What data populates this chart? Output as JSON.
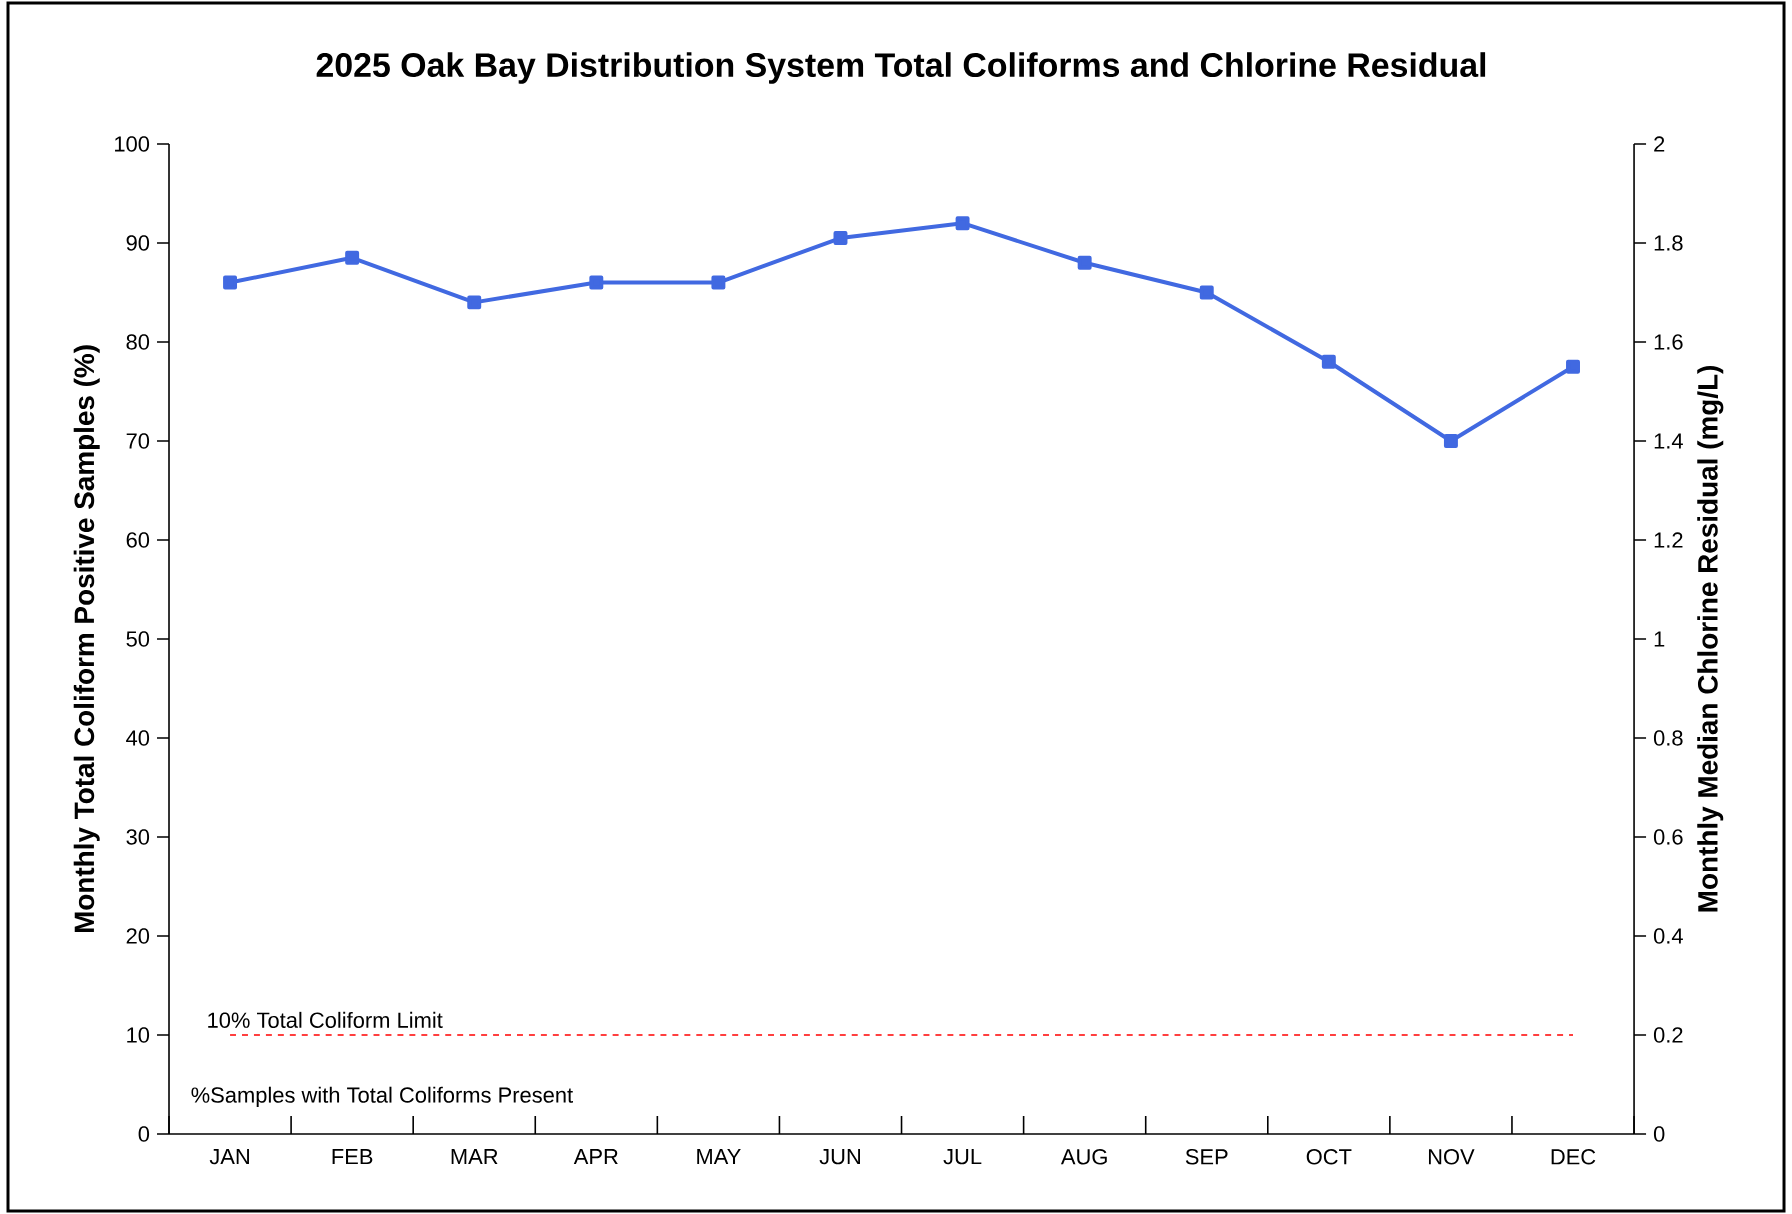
{
  "chart_data": {
    "type": "line",
    "title": "2025 Oak Bay Distribution System Total Coliforms and Chlorine Residual",
    "ylabel": "Monthly  Total Coliform Positive Samples (%)",
    "y2label": "Monthly Median Chlorine Residual (mg/L)",
    "categories": [
      "JAN",
      "FEB",
      "MAR",
      "APR",
      "MAY",
      "JUN",
      "JUL",
      "AUG",
      "SEP",
      "OCT",
      "NOV",
      "DEC"
    ],
    "series": [
      {
        "color": "#4169e1",
        "axis": "y2",
        "values": [
          1.72,
          1.77,
          1.68,
          1.72,
          1.72,
          1.81,
          1.84,
          1.76,
          1.7,
          1.56,
          1.4,
          1.55
        ]
      }
    ],
    "ylim": [
      0,
      100
    ],
    "yticks": [
      0,
      10,
      20,
      30,
      40,
      50,
      60,
      70,
      80,
      90,
      100
    ],
    "y2lim": [
      0,
      2
    ],
    "y2ticks": [
      0,
      0.2,
      0.4,
      0.6,
      0.8,
      1,
      1.2,
      1.4,
      1.6,
      1.8,
      2
    ],
    "ref_lines": [
      {
        "axis": "y",
        "value": 10,
        "label": "10% Total Coliform Limit",
        "color": "#ff0000",
        "line_style": "dashed"
      }
    ],
    "annotations": [
      "%Samples with Total Coliforms Present"
    ],
    "marker": "square",
    "line_style": "solid",
    "grid": false
  }
}
